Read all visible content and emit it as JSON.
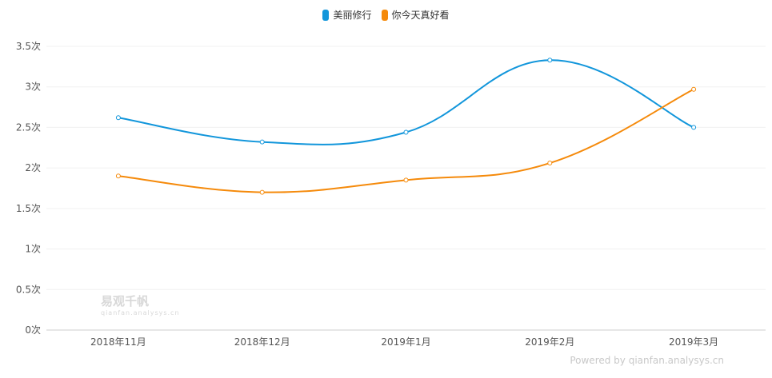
{
  "chart_data": {
    "type": "line",
    "categories": [
      "2018年11月",
      "2018年12月",
      "2019年1月",
      "2019年2月",
      "2019年3月"
    ],
    "series": [
      {
        "name": "美丽修行",
        "color": "#1296db",
        "values": [
          2.62,
          2.32,
          2.44,
          3.33,
          2.5
        ]
      },
      {
        "name": "你今天真好看",
        "color": "#f58a0b",
        "values": [
          1.9,
          1.7,
          1.85,
          2.06,
          2.97
        ]
      }
    ],
    "ylim": [
      0,
      3.5
    ],
    "yticks": [
      0,
      0.5,
      1,
      1.5,
      2,
      2.5,
      3,
      3.5
    ],
    "ytick_labels": [
      "0次",
      "0.5次",
      "1次",
      "1.5次",
      "2次",
      "2.5次",
      "3次",
      "3.5次"
    ],
    "grid": true,
    "legend_position": "top-center",
    "smooth": true
  },
  "watermark": {
    "title": "易观千帆",
    "subtitle": "qianfan.analysys.cn"
  },
  "powered_by": "Powered by qianfan.analysys.cn"
}
